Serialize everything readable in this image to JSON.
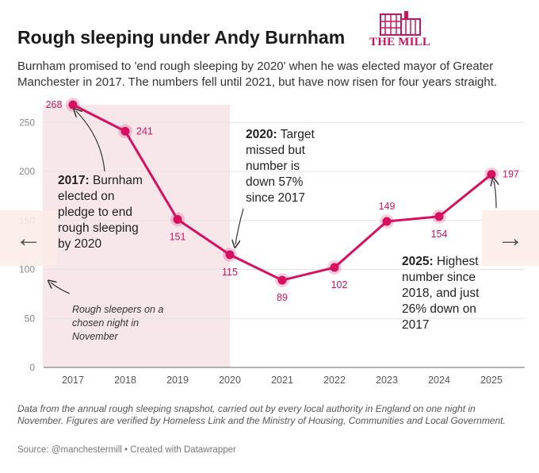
{
  "header": {
    "title": "Rough sleeping under Andy Burnham",
    "subtitle": "Burnham promised to 'end rough sleeping by 2020' when he was elected mayor of Greater Manchester in 2017. The numbers fell until 2021, but have now risen for four years straight.",
    "logo_text": "THE MILL"
  },
  "colors": {
    "accent": "#d6105f",
    "shade": "#f7e6ea",
    "grid": "#e4e4e4"
  },
  "chart_data": {
    "type": "line",
    "title": "Rough sleeping under Andy Burnham",
    "xlabel": "",
    "ylabel": "",
    "x": [
      "2017",
      "2018",
      "2019",
      "2020",
      "2021",
      "2022",
      "2023",
      "2024",
      "2025"
    ],
    "series": [
      {
        "values": [
          268,
          241,
          151,
          115,
          89,
          102,
          149,
          154,
          197
        ]
      }
    ],
    "ylim": [
      0,
      270
    ],
    "yticks": [
      0,
      50,
      100,
      150,
      200,
      250
    ],
    "grid": true,
    "shaded_range": [
      "2017",
      "2020"
    ],
    "data_labels": [
      "268",
      "241",
      "151",
      "115",
      "89",
      "102",
      "149",
      "154",
      "197"
    ]
  },
  "annotations": {
    "a2017": {
      "bold": "2017:",
      "text": "Burnham elected on pledge to end rough sleeping by 2020"
    },
    "note": "Rough sleepers on a chosen night in November",
    "a2020": {
      "bold": "2020:",
      "text": "Target missed but number is down 57% since 2017"
    },
    "a2025": {
      "bold": "2025:",
      "text": "Highest number since 2018, and just 26% down on 2017"
    }
  },
  "nav": {
    "prev": "←",
    "next": "→"
  },
  "footer": {
    "notes": "Data from the annual rough sleeping snapshot, carried out by every local authority in England on one night in November. Figures are verified by Homeless Link and the Ministry of Housing, Communities and Local Government.",
    "source": "Source: @manchestermill • Created with Datawrapper"
  }
}
